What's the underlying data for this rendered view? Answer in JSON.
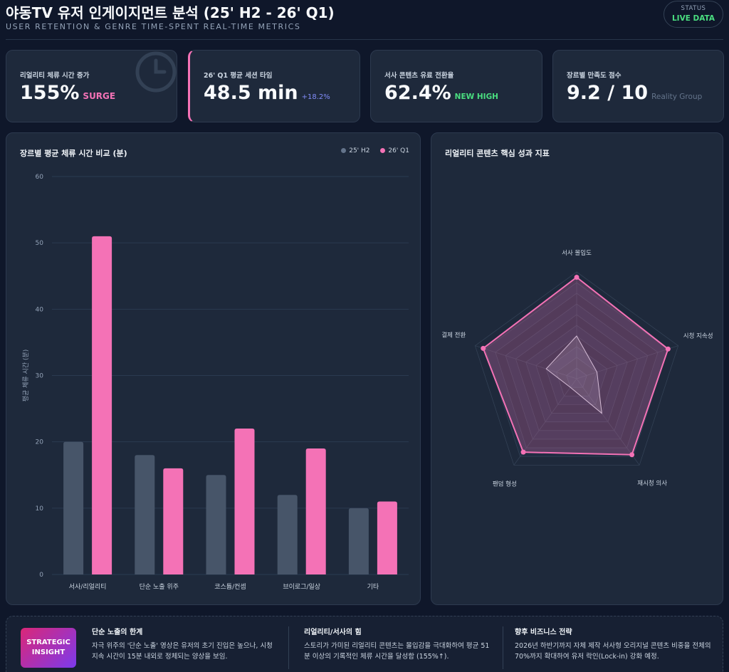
{
  "header": {
    "title": "야동TV 유저 인게이지먼트 분석 (25' H2 - 26' Q1)",
    "subtitle": "USER RETENTION & GENRE TIME-SPENT REAL-TIME METRICS",
    "status_label": "STATUS",
    "status_value": "LIVE DATA"
  },
  "kpis": [
    {
      "label": "리얼리티 체류 시간 증가",
      "value": "155%",
      "sub": "SURGE",
      "icon": "clock-icon"
    },
    {
      "label": "26' Q1 평균 세션 타임",
      "value": "48.5 min",
      "sub": "+18.2%"
    },
    {
      "label": "서사 콘텐츠 유료 전환율",
      "value": "62.4%",
      "sub": "NEW HIGH"
    },
    {
      "label": "장르별 만족도 점수",
      "value": "9.2 / 10",
      "sub": "Reality Group"
    }
  ],
  "bar_panel": {
    "title": "장르별 평균 체류 시간 비교 (분)"
  },
  "radar_panel": {
    "title": "리얼리티 콘텐츠 핵심 성과 지표"
  },
  "colors": {
    "series_h2": "#475569",
    "series_q1": "#f472b6",
    "background": "#0f172a",
    "panel": "#1e293b"
  },
  "chart_data": [
    {
      "type": "bar",
      "title": "장르별 평균 체류 시간 비교 (분)",
      "xlabel": "",
      "ylabel": "평균 체류 시간 (분)",
      "ylim": [
        0,
        60
      ],
      "yticks": [
        0,
        10,
        20,
        30,
        40,
        50,
        60
      ],
      "legend": "top-right",
      "categories": [
        "서사/리얼리티",
        "단순 노출 위주",
        "코스튬/컨셉",
        "브이로그/일상",
        "기타"
      ],
      "series": [
        {
          "name": "25' H2",
          "values": [
            20,
            18,
            15,
            12,
            10
          ]
        },
        {
          "name": "26' Q1",
          "values": [
            51,
            16,
            22,
            19,
            11
          ]
        }
      ]
    },
    {
      "type": "radar",
      "title": "리얼리티 콘텐츠 핵심 성과 지표",
      "axes": [
        "서사 몰입도",
        "시청 지속성",
        "재시청 의사",
        "팬덤 형성",
        "결제 전환"
      ],
      "range": [
        0,
        100
      ],
      "series": [
        {
          "name": "26' Q1",
          "values": [
            95,
            90,
            88,
            85,
            92
          ]
        },
        {
          "name": "25' H2",
          "values": [
            40,
            20,
            40,
            10,
            30
          ]
        }
      ]
    }
  ],
  "insight": {
    "badge_line1": "STRATEGIC",
    "badge_line2": "INSIGHT",
    "columns": [
      {
        "title": "단순 노출의 한계",
        "text": "자극 위주의 '단순 노출' 영상은 유저의 초기 진입은 높으나, 시청 지속 시간이 15분 내외로 정체되는 양상을 보임."
      },
      {
        "title": "리얼리티/서사의 힘",
        "text": "스토리가 가미된 리얼리티 콘텐츠는 몰입감을 극대화하여 평균 51분 이상의 기록적인 체류 시간을 달성함 (155%↑)."
      },
      {
        "title": "향후 비즈니스 전략",
        "text": "2026년 하반기까지 자체 제작 서사형 오리지널 콘텐츠 비중을 전체의 70%까지 확대하여 유저 락인(Lock-in) 강화 예정."
      }
    ]
  }
}
